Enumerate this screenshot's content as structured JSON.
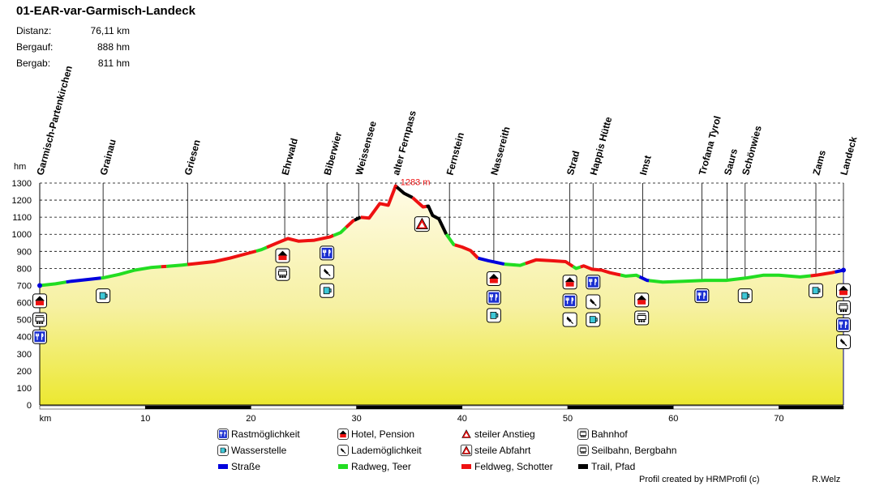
{
  "title": "01-EAR-var-Garmisch-Landeck",
  "stats": [
    {
      "label": "Distanz:",
      "value": "76,11 km"
    },
    {
      "label": "Bergauf:",
      "value": "888 hm"
    },
    {
      "label": "Bergab:",
      "value": "811 hm"
    }
  ],
  "credit": "Profil created by HRMProfil (c)",
  "author": "R.Welz",
  "chart_data": {
    "type": "area",
    "ylabel": "hm",
    "xlabel": "km",
    "ylim": [
      0,
      1300
    ],
    "xlim": [
      0,
      76.11
    ],
    "y_ticks": [
      0,
      100,
      200,
      300,
      400,
      500,
      600,
      700,
      800,
      900,
      1000,
      1100,
      1200,
      1300
    ],
    "x_ticks": [
      10,
      20,
      30,
      40,
      50,
      60,
      70
    ],
    "grid": true,
    "peak": {
      "km": 33.7,
      "elevation": 1283,
      "label": "1283 m"
    },
    "profile": [
      [
        0,
        700
      ],
      [
        1.5,
        710
      ],
      [
        3,
        725
      ],
      [
        4.5,
        735
      ],
      [
        6,
        745
      ],
      [
        7.5,
        765
      ],
      [
        9,
        790
      ],
      [
        10.5,
        805
      ],
      [
        12,
        812
      ],
      [
        13.5,
        820
      ],
      [
        15,
        830
      ],
      [
        16.5,
        840
      ],
      [
        18,
        860
      ],
      [
        19.5,
        885
      ],
      [
        21,
        910
      ],
      [
        22.5,
        950
      ],
      [
        23.5,
        975
      ],
      [
        24.5,
        960
      ],
      [
        26,
        965
      ],
      [
        27.5,
        985
      ],
      [
        28.5,
        1010
      ],
      [
        29,
        1040
      ],
      [
        29.7,
        1080
      ],
      [
        30.4,
        1100
      ],
      [
        31.2,
        1095
      ],
      [
        32.2,
        1180
      ],
      [
        33,
        1170
      ],
      [
        33.7,
        1283
      ],
      [
        34.5,
        1240
      ],
      [
        35.3,
        1215
      ],
      [
        36.3,
        1160
      ],
      [
        36.8,
        1165
      ],
      [
        37.2,
        1110
      ],
      [
        37.8,
        1090
      ],
      [
        38.5,
        1000
      ],
      [
        39.2,
        940
      ],
      [
        40,
        925
      ],
      [
        40.8,
        905
      ],
      [
        41.5,
        860
      ],
      [
        42.5,
        845
      ],
      [
        44,
        825
      ],
      [
        45.5,
        818
      ],
      [
        47,
        850
      ],
      [
        48.5,
        845
      ],
      [
        49.8,
        840
      ],
      [
        50.8,
        800
      ],
      [
        51.5,
        815
      ],
      [
        52.3,
        795
      ],
      [
        53.2,
        790
      ],
      [
        54,
        775
      ],
      [
        55.5,
        755
      ],
      [
        56.5,
        760
      ],
      [
        57.5,
        730
      ],
      [
        59,
        720
      ],
      [
        61,
        725
      ],
      [
        63,
        730
      ],
      [
        65,
        730
      ],
      [
        67,
        745
      ],
      [
        68.5,
        760
      ],
      [
        70,
        760
      ],
      [
        72,
        750
      ],
      [
        73.5,
        760
      ],
      [
        75,
        775
      ],
      [
        76.11,
        790
      ]
    ],
    "places": [
      {
        "name": "Garmisch-Partenkirchen",
        "km": 0
      },
      {
        "name": "Grainau",
        "km": 6
      },
      {
        "name": "Griesen",
        "km": 14
      },
      {
        "name": "Ehrwald",
        "km": 23.2
      },
      {
        "name": "Biberwier",
        "km": 27.2
      },
      {
        "name": "Weissensee",
        "km": 30.2
      },
      {
        "name": "alter Fernpass",
        "km": 33.7
      },
      {
        "name": "Fernstein",
        "km": 38.8
      },
      {
        "name": "Nassereith",
        "km": 43
      },
      {
        "name": "Strad",
        "km": 50.2
      },
      {
        "name": "Happis Hütte",
        "km": 52.4
      },
      {
        "name": "Imst",
        "km": 57.1
      },
      {
        "name": "Trofana Tyrol",
        "km": 62.7
      },
      {
        "name": "Saurs",
        "km": 65.1
      },
      {
        "name": "Schönwies",
        "km": 66.8
      },
      {
        "name": "Zams",
        "km": 73.5
      },
      {
        "name": "Landeck",
        "km": 76.11
      }
    ],
    "icons": [
      {
        "type": "hotel",
        "km": 0,
        "y": 610
      },
      {
        "type": "bahnhof",
        "km": 0,
        "y": 500
      },
      {
        "type": "rast",
        "km": 0,
        "y": 400
      },
      {
        "type": "wasser",
        "km": 6,
        "y": 640
      },
      {
        "type": "hotel",
        "km": 23,
        "y": 875
      },
      {
        "type": "bahnhof",
        "km": 23,
        "y": 770
      },
      {
        "type": "rast",
        "km": 27.2,
        "y": 890
      },
      {
        "type": "lade",
        "km": 27.2,
        "y": 780
      },
      {
        "type": "wasser",
        "km": 27.2,
        "y": 670
      },
      {
        "type": "abfahrt",
        "km": 36.2,
        "y": 1060
      },
      {
        "type": "hotel",
        "km": 43,
        "y": 740
      },
      {
        "type": "rast",
        "km": 43,
        "y": 630
      },
      {
        "type": "wasser",
        "km": 43,
        "y": 525
      },
      {
        "type": "hotel",
        "km": 50.2,
        "y": 720
      },
      {
        "type": "rast",
        "km": 50.2,
        "y": 610
      },
      {
        "type": "lade",
        "km": 50.2,
        "y": 500
      },
      {
        "type": "rast",
        "km": 52.4,
        "y": 720
      },
      {
        "type": "lade",
        "km": 52.4,
        "y": 605
      },
      {
        "type": "wasser",
        "km": 52.4,
        "y": 500
      },
      {
        "type": "hotel",
        "km": 57,
        "y": 615
      },
      {
        "type": "bahnhof",
        "km": 57,
        "y": 510
      },
      {
        "type": "rast",
        "km": 62.7,
        "y": 640
      },
      {
        "type": "wasser",
        "km": 66.8,
        "y": 640
      },
      {
        "type": "wasser",
        "km": 73.5,
        "y": 670
      },
      {
        "type": "hotel",
        "km": 76.11,
        "y": 670
      },
      {
        "type": "bahnhof",
        "km": 76.11,
        "y": 570
      },
      {
        "type": "rast",
        "km": 76.11,
        "y": 470
      },
      {
        "type": "lade",
        "km": 76.11,
        "y": 370
      }
    ],
    "segments": [
      {
        "from": 0,
        "to": 2.5,
        "surface": "radweg"
      },
      {
        "from": 2.5,
        "to": 5.8,
        "surface": "strasse"
      },
      {
        "from": 5.8,
        "to": 11.5,
        "surface": "radweg"
      },
      {
        "from": 11.5,
        "to": 12,
        "surface": "feldweg"
      },
      {
        "from": 12,
        "to": 14,
        "surface": "radweg"
      },
      {
        "from": 14,
        "to": 20.5,
        "surface": "feldweg"
      },
      {
        "from": 20.5,
        "to": 21.5,
        "surface": "radweg"
      },
      {
        "from": 21.5,
        "to": 27.8,
        "surface": "feldweg"
      },
      {
        "from": 27.8,
        "to": 29,
        "surface": "radweg"
      },
      {
        "from": 29,
        "to": 29.8,
        "surface": "feldweg"
      },
      {
        "from": 29.8,
        "to": 30.4,
        "surface": "trail"
      },
      {
        "from": 30.4,
        "to": 33.7,
        "surface": "feldweg"
      },
      {
        "from": 33.7,
        "to": 35.3,
        "surface": "trail"
      },
      {
        "from": 35.3,
        "to": 36.6,
        "surface": "feldweg"
      },
      {
        "from": 36.6,
        "to": 38.5,
        "surface": "trail"
      },
      {
        "from": 38.5,
        "to": 39.3,
        "surface": "radweg"
      },
      {
        "from": 39.3,
        "to": 41.5,
        "surface": "feldweg"
      },
      {
        "from": 41.5,
        "to": 44,
        "surface": "strasse"
      },
      {
        "from": 44,
        "to": 46,
        "surface": "radweg"
      },
      {
        "from": 46,
        "to": 50.5,
        "surface": "feldweg"
      },
      {
        "from": 50.5,
        "to": 51.2,
        "surface": "radweg"
      },
      {
        "from": 51.2,
        "to": 55,
        "surface": "feldweg"
      },
      {
        "from": 55,
        "to": 56.8,
        "surface": "radweg"
      },
      {
        "from": 56.8,
        "to": 57.7,
        "surface": "strasse"
      },
      {
        "from": 57.7,
        "to": 73,
        "surface": "radweg"
      },
      {
        "from": 73,
        "to": 75.3,
        "surface": "feldweg"
      },
      {
        "from": 75.3,
        "to": 76.11,
        "surface": "strasse"
      }
    ],
    "legend": [
      {
        "icon": "rast",
        "label": "Rastmöglichkeit"
      },
      {
        "icon": "hotel",
        "label": "Hotel, Pension"
      },
      {
        "icon": "anstieg",
        "label": "steiler Anstieg"
      },
      {
        "icon": "bahnhof",
        "label": "Bahnhof"
      },
      {
        "icon": "wasser",
        "label": "Wasserstelle"
      },
      {
        "icon": "lade",
        "label": "Lademöglichkeit"
      },
      {
        "icon": "abfahrt",
        "label": "steile Abfahrt"
      },
      {
        "icon": "seilbahn",
        "label": "Seilbahn, Bergbahn"
      },
      {
        "surface": "strasse",
        "label": "Straße"
      },
      {
        "surface": "radweg",
        "label": "Radweg, Teer"
      },
      {
        "surface": "feldweg",
        "label": "Feldweg, Schotter"
      },
      {
        "surface": "trail",
        "label": "Trail, Pfad"
      }
    ],
    "surface_colors": {
      "strasse": "#0000dd",
      "radweg": "#22dd22",
      "feldweg": "#ee1111",
      "trail": "#000000"
    }
  }
}
